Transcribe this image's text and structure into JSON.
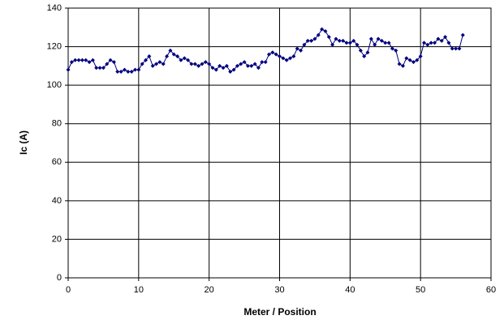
{
  "chart_data": {
    "type": "line",
    "x_label": "Meter / Position",
    "y_label": "Ic (A)",
    "x": [
      0,
      0.5,
      1,
      1.5,
      2,
      2.5,
      3,
      3.5,
      4,
      4.5,
      5,
      5.5,
      6,
      6.5,
      7,
      7.5,
      8,
      8.5,
      9,
      9.5,
      10,
      10.5,
      11,
      11.5,
      12,
      12.5,
      13,
      13.5,
      14,
      14.5,
      15,
      15.5,
      16,
      16.5,
      17,
      17.5,
      18,
      18.5,
      19,
      19.5,
      20,
      20.5,
      21,
      21.5,
      22,
      22.5,
      23,
      23.5,
      24,
      24.5,
      25,
      25.5,
      26,
      26.5,
      27,
      27.5,
      28,
      28.5,
      29,
      29.5,
      30,
      30.5,
      31,
      31.5,
      32,
      32.5,
      33,
      33.5,
      34,
      34.5,
      35,
      35.5,
      36,
      36.5,
      37,
      37.5,
      38,
      38.5,
      39,
      39.5,
      40,
      40.5,
      41,
      41.5,
      42,
      42.5,
      43,
      43.5,
      44,
      44.5,
      45,
      45.5,
      46,
      46.5,
      47,
      47.5,
      48,
      48.5,
      49,
      49.5,
      50,
      50.5,
      51,
      51.5,
      52,
      52.5,
      53,
      53.5,
      54,
      54.5,
      55,
      55.5,
      56
    ],
    "series": [
      {
        "color": "#000080",
        "values": [
          108,
          112,
          113,
          113,
          113,
          113,
          112,
          113,
          109,
          109,
          109,
          111,
          113,
          112,
          107,
          107,
          108,
          107,
          107,
          108,
          108,
          111,
          113,
          115,
          110,
          111,
          112,
          111,
          115,
          118,
          116,
          115,
          113,
          114,
          113,
          111,
          111,
          110,
          111,
          112,
          111,
          109,
          108,
          110,
          109,
          110,
          107,
          108,
          110,
          111,
          112,
          110,
          110,
          111,
          109,
          112,
          112,
          116,
          117,
          116,
          115,
          114,
          113,
          114,
          115,
          119,
          118,
          121,
          123,
          123,
          124,
          126,
          129,
          128,
          125,
          121,
          124,
          123,
          123,
          122,
          122,
          123,
          121,
          118,
          115,
          117,
          124,
          121,
          124,
          123,
          122,
          122,
          119,
          118,
          111,
          110,
          114,
          113,
          112,
          113,
          115,
          122,
          121,
          122,
          122,
          124,
          123,
          125,
          122,
          119,
          119,
          119,
          126
        ]
      }
    ],
    "xlim": [
      0,
      60
    ],
    "xticks": [
      0,
      10,
      20,
      30,
      40,
      50,
      60
    ],
    "ylim": [
      0,
      140
    ],
    "yticks": [
      0,
      20,
      40,
      60,
      80,
      100,
      120,
      140
    ],
    "grid": true
  }
}
